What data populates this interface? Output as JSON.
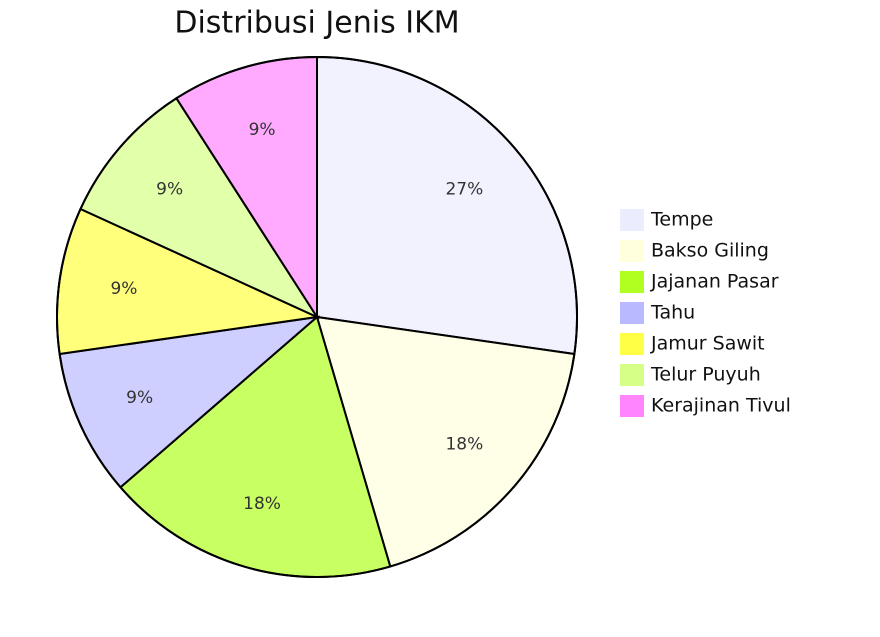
{
  "chart_data": {
    "type": "pie",
    "title": "Distribusi Jenis IKM",
    "categories": [
      "Tempe",
      "Bakso Giling",
      "Jajanan Pasar",
      "Tahu",
      "Jamur Sawit",
      "Telur Puyuh",
      "Kerajinan Tivul"
    ],
    "values": [
      27,
      18,
      18,
      9,
      9,
      9,
      9
    ],
    "value_labels": [
      "27%",
      "18%",
      "18%",
      "9%",
      "9%",
      "9%",
      "9%"
    ],
    "colors": [
      "#ececff",
      "#ffffde",
      "#b0ff20",
      "#b9b9ff",
      "#ffff45",
      "#d5ff86",
      "#ff86ff"
    ]
  }
}
